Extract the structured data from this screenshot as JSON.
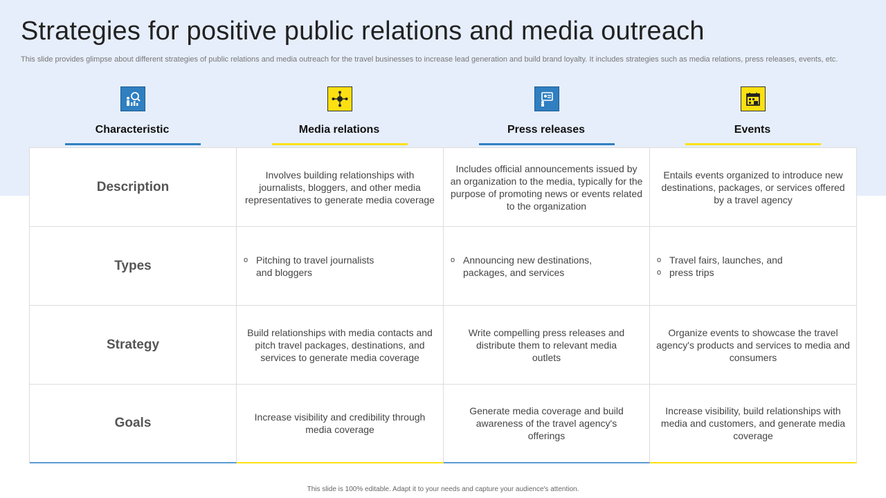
{
  "title": "Strategies for positive public relations and media outreach",
  "subtitle": "This slide provides glimpse about different strategies of public relations and media outreach for the travel businesses to increase lead generation and build brand loyalty. It includes strategies such as media relations, press releases, events, etc.",
  "columns": [
    {
      "label": "Characteristic",
      "icon": "analytics-person-icon",
      "accent": "#2f7fc1"
    },
    {
      "label": "Media relations",
      "icon": "network-people-icon",
      "accent": "#fde011"
    },
    {
      "label": "Press releases",
      "icon": "press-release-icon",
      "accent": "#2f7fc1"
    },
    {
      "label": "Events",
      "icon": "calendar-icon",
      "accent": "#fde011"
    }
  ],
  "rows": [
    {
      "label": "Description",
      "cells": [
        "Involves building relationships with journalists, bloggers, and other media representatives to generate media coverage",
        "Includes official announcements issued by an organization to the media, typically for the purpose of promoting news or events related to the organization",
        "Entails events organized to introduce new destinations, packages, or services offered by a travel agency"
      ]
    },
    {
      "label": "Types",
      "bullets": [
        [
          "Pitching to travel journalists and bloggers"
        ],
        [
          "Announcing new destinations, packages, and services"
        ],
        [
          "Travel fairs, launches, and",
          "press trips"
        ]
      ]
    },
    {
      "label": "Strategy",
      "cells": [
        "Build relationships with media contacts and pitch travel packages, destinations, and services to generate media coverage",
        "Write compelling press releases and distribute them to relevant media outlets",
        "Organize events to showcase the travel agency's products and services to media and consumers"
      ]
    },
    {
      "label": "Goals",
      "cells": [
        "Increase visibility and credibility through media coverage",
        "Generate media coverage and build awareness of the travel agency's offerings",
        "Increase visibility, build relationships with media and customers, and generate media coverage"
      ]
    }
  ],
  "bullet_symbol": "o",
  "footer": "This slide is 100% editable. Adapt it to your needs and capture your audience's attention."
}
